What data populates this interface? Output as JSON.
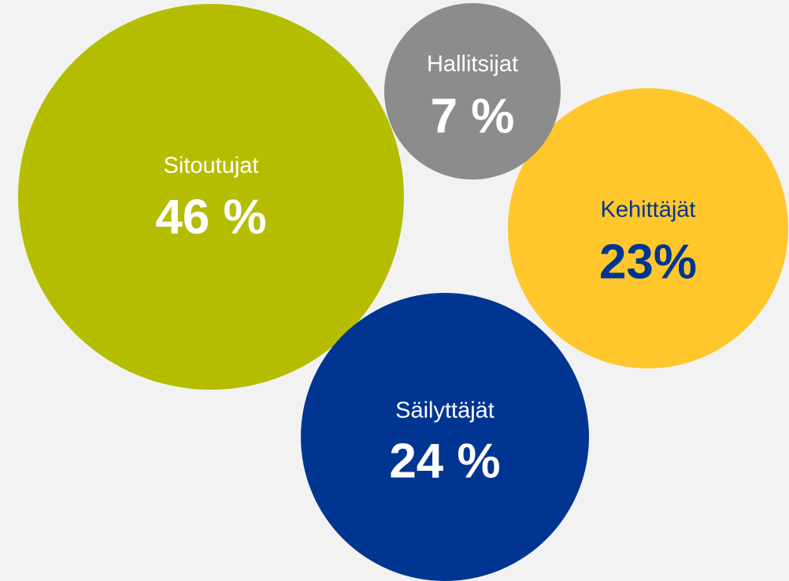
{
  "chart_data": {
    "type": "bubble",
    "categories": [
      "Sitoutujat",
      "Hallitsijat",
      "Kehittäjät",
      "Säilyttäjät"
    ],
    "values": [
      46,
      7,
      23,
      24
    ],
    "value_labels": [
      "46 %",
      "7 %",
      "23%",
      "24 %"
    ],
    "colors": [
      "#b5bd00",
      "#8c8c8c",
      "#ffc72c",
      "#003591"
    ],
    "text_colors": [
      "#ffffff",
      "#ffffff",
      "#003591",
      "#ffffff"
    ]
  }
}
